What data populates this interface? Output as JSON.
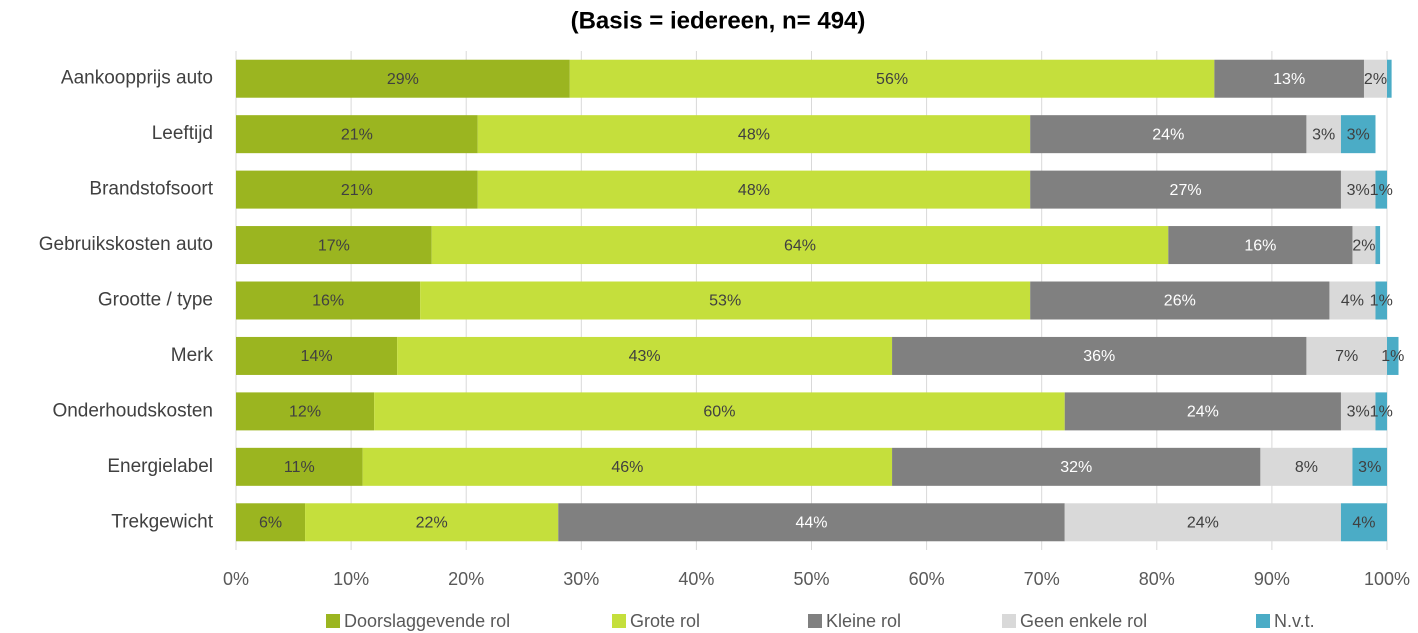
{
  "chart_data": {
    "type": "stacked_bar_horizontal",
    "title": "(Basis = iedereen, n= 494)",
    "categories": [
      "Aankoopprijs auto",
      "Leeftijd",
      "Brandstofsoort",
      "Gebruikskosten auto",
      "Grootte / type",
      "Merk",
      "Onderhoudskosten",
      "Energielabel",
      "Trekgewicht"
    ],
    "series": [
      {
        "name": "Doorslaggevende rol",
        "color": "#9bb520",
        "values": [
          29,
          21,
          21,
          17,
          16,
          14,
          12,
          11,
          6
        ],
        "value_labels": [
          "29%",
          "21%",
          "21%",
          "17%",
          "16%",
          "14%",
          "12%",
          "11%",
          "6%"
        ]
      },
      {
        "name": "Grote rol",
        "color": "#c5df3c",
        "values": [
          56,
          48,
          48,
          64,
          53,
          43,
          60,
          46,
          22
        ],
        "value_labels": [
          "56%",
          "48%",
          "48%",
          "64%",
          "53%",
          "43%",
          "60%",
          "46%",
          "22%"
        ]
      },
      {
        "name": "Kleine rol",
        "color": "#808080",
        "values": [
          13,
          24,
          27,
          16,
          26,
          36,
          24,
          32,
          44
        ],
        "value_labels": [
          "13%",
          "24%",
          "27%",
          "16%",
          "26%",
          "36%",
          "24%",
          "32%",
          "44%"
        ]
      },
      {
        "name": "Geen enkele rol",
        "color": "#d9d9d9",
        "values": [
          2,
          3,
          3,
          2,
          4,
          7,
          3,
          8,
          24
        ],
        "value_labels": [
          "2%",
          "3%",
          "3%",
          "2%",
          "4%",
          "7%",
          "3%",
          "8%",
          "24%"
        ]
      },
      {
        "name": "N.v.t.",
        "color": "#4bacc6",
        "values": [
          0.4,
          3,
          1,
          0.4,
          1,
          1,
          1,
          3,
          4
        ],
        "value_labels": [
          null,
          "3%",
          "1%",
          null,
          "1%",
          "1%",
          "1%",
          "3%",
          "4%"
        ]
      }
    ],
    "xlim": [
      0,
      100
    ],
    "xticks": [
      {
        "value": 0,
        "label": "0%"
      },
      {
        "value": 10,
        "label": "10%"
      },
      {
        "value": 20,
        "label": "20%"
      },
      {
        "value": 30,
        "label": "30%"
      },
      {
        "value": 40,
        "label": "40%"
      },
      {
        "value": 50,
        "label": "50%"
      },
      {
        "value": 60,
        "label": "60%"
      },
      {
        "value": 70,
        "label": "70%"
      },
      {
        "value": 80,
        "label": "80%"
      },
      {
        "value": 90,
        "label": "90%"
      },
      {
        "value": 100,
        "label": "100%"
      }
    ],
    "grid": true,
    "legend": "bottom"
  }
}
